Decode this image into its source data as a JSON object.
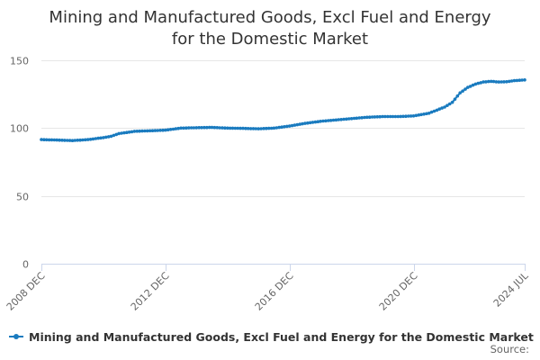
{
  "chart_data": {
    "type": "line",
    "title": "Mining and Manufactured Goods, Excl Fuel and Energy for the Domestic Market",
    "xlabel": "",
    "ylabel": "",
    "ylim": [
      0,
      150
    ],
    "yticks": [
      "0",
      "50",
      "100",
      "150"
    ],
    "xticks": [
      "2008 DEC",
      "2012 DEC",
      "2016 DEC",
      "2020 DEC",
      "2024 JUL"
    ],
    "grid": true,
    "legend_position": "bottom-left",
    "color": "#1a7bbf",
    "series": [
      {
        "name": "Mining and Manufactured Goods, Excl Fuel and Energy for the Domestic Market",
        "start": "2008 DEC",
        "end": "2024 JUL",
        "anchors": [
          [
            "2008 DEC",
            91.5
          ],
          [
            "2009 JUN",
            91.2
          ],
          [
            "2009 DEC",
            90.8
          ],
          [
            "2010 JUN",
            91.5
          ],
          [
            "2010 DEC",
            93.0
          ],
          [
            "2011 MAR",
            94.0
          ],
          [
            "2011 JUN",
            96.0
          ],
          [
            "2011 DEC",
            97.6
          ],
          [
            "2012 JUN",
            98.0
          ],
          [
            "2012 DEC",
            98.5
          ],
          [
            "2013 JUN",
            100.0
          ],
          [
            "2013 DEC",
            100.3
          ],
          [
            "2014 JUN",
            100.5
          ],
          [
            "2014 DEC",
            100.0
          ],
          [
            "2015 JUN",
            99.8
          ],
          [
            "2015 DEC",
            99.5
          ],
          [
            "2016 JUN",
            100.0
          ],
          [
            "2016 DEC",
            101.5
          ],
          [
            "2017 JUN",
            103.5
          ],
          [
            "2017 DEC",
            105.0
          ],
          [
            "2018 JUN",
            106.0
          ],
          [
            "2018 DEC",
            107.0
          ],
          [
            "2019 JUN",
            108.0
          ],
          [
            "2019 DEC",
            108.5
          ],
          [
            "2020 JUN",
            108.5
          ],
          [
            "2020 DEC",
            109.0
          ],
          [
            "2021 JUN",
            111.0
          ],
          [
            "2021 DEC",
            115.5
          ],
          [
            "2022 MAR",
            119.0
          ],
          [
            "2022 JUN",
            126.0
          ],
          [
            "2022 SEP",
            130.0
          ],
          [
            "2022 DEC",
            132.5
          ],
          [
            "2023 MAR",
            134.0
          ],
          [
            "2023 JUN",
            134.5
          ],
          [
            "2023 SEP",
            134.0
          ],
          [
            "2023 DEC",
            134.2
          ],
          [
            "2024 MAR",
            135.0
          ],
          [
            "2024 JUL",
            135.5
          ]
        ]
      }
    ],
    "source_label": "Source:"
  }
}
